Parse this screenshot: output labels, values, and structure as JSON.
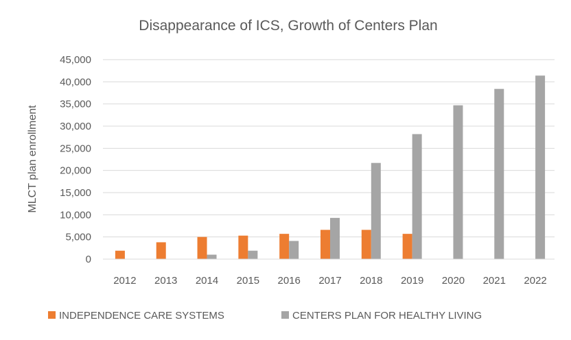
{
  "chart_data": {
    "type": "bar",
    "title": "Disappearance of ICS, Growth of Centers Plan",
    "xlabel": "",
    "ylabel": "MLCT plan enrollment",
    "ylim": [
      0,
      45000
    ],
    "yticks": [
      "0",
      "5,000",
      "10,000",
      "15,000",
      "20,000",
      "25,000",
      "30,000",
      "35,000",
      "40,000",
      "45,000"
    ],
    "grid": true,
    "legend_position": "bottom",
    "categories": [
      "2012",
      "2013",
      "2014",
      "2015",
      "2016",
      "2017",
      "2018",
      "2019",
      "2020",
      "2021",
      "2022"
    ],
    "series": [
      {
        "name": "INDEPENDENCE CARE SYSTEMS",
        "color": "#ED7D31",
        "values": [
          1900,
          3800,
          5000,
          5300,
          5700,
          6600,
          6600,
          5700,
          null,
          null,
          null
        ]
      },
      {
        "name": "CENTERS PLAN FOR HEALTHY LIVING",
        "color": "#A5A5A5",
        "values": [
          null,
          null,
          1000,
          1900,
          4100,
          9300,
          21700,
          28200,
          34700,
          38400,
          41400
        ]
      }
    ]
  }
}
